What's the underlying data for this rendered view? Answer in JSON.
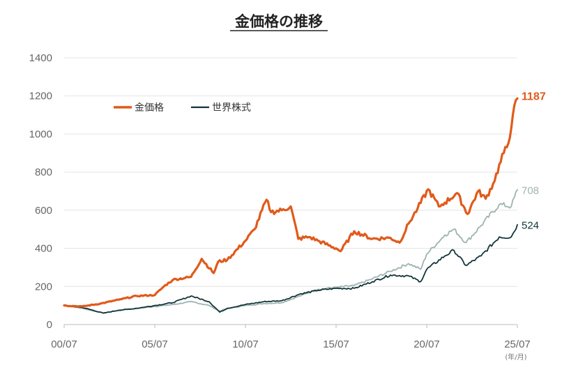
{
  "chart_data": {
    "type": "line",
    "title": "金価格の推移",
    "x_unit_note": "(年/月)",
    "xlabel": "",
    "ylabel": "",
    "x_ticks": [
      "00/07",
      "05/07",
      "10/07",
      "15/07",
      "20/07",
      "25/07"
    ],
    "y_ticks": [
      0,
      200,
      400,
      600,
      800,
      1000,
      1200,
      1400
    ],
    "ylim": [
      0,
      1400
    ],
    "xlim": [
      "2000-07",
      "2025-07"
    ],
    "grid": "horizontal",
    "legend_position": "top-left",
    "series": [
      {
        "name": "金価格",
        "color": "#e05a1a",
        "end_label": "1187",
        "points": [
          [
            "2000-07",
            100
          ],
          [
            "2001-07",
            95
          ],
          [
            "2002-07",
            110
          ],
          [
            "2003-07",
            130
          ],
          [
            "2004-07",
            150
          ],
          [
            "2005-07",
            155
          ],
          [
            "2006-01",
            200
          ],
          [
            "2006-07",
            235
          ],
          [
            "2007-07",
            250
          ],
          [
            "2008-02",
            345
          ],
          [
            "2008-10",
            270
          ],
          [
            "2009-01",
            330
          ],
          [
            "2009-07",
            340
          ],
          [
            "2010-07",
            440
          ],
          [
            "2011-01",
            500
          ],
          [
            "2011-09",
            655
          ],
          [
            "2011-12",
            590
          ],
          [
            "2012-07",
            600
          ],
          [
            "2013-01",
            620
          ],
          [
            "2013-06",
            450
          ],
          [
            "2014-01",
            460
          ],
          [
            "2014-07",
            440
          ],
          [
            "2015-07",
            400
          ],
          [
            "2015-10",
            385
          ],
          [
            "2016-07",
            490
          ],
          [
            "2017-07",
            450
          ],
          [
            "2018-07",
            455
          ],
          [
            "2019-01",
            430
          ],
          [
            "2019-07",
            530
          ],
          [
            "2020-01",
            610
          ],
          [
            "2020-08",
            710
          ],
          [
            "2021-03",
            620
          ],
          [
            "2021-07",
            640
          ],
          [
            "2022-03",
            690
          ],
          [
            "2022-10",
            580
          ],
          [
            "2023-05",
            700
          ],
          [
            "2023-10",
            660
          ],
          [
            "2024-03",
            740
          ],
          [
            "2024-10",
            900
          ],
          [
            "2025-01",
            950
          ],
          [
            "2025-04",
            1100
          ],
          [
            "2025-07",
            1187
          ]
        ]
      },
      {
        "name": "",
        "color": "#9db3b0",
        "end_label": "708",
        "points": [
          [
            "2000-07",
            100
          ],
          [
            "2001-07",
            85
          ],
          [
            "2002-09",
            60
          ],
          [
            "2003-07",
            75
          ],
          [
            "2004-07",
            85
          ],
          [
            "2005-07",
            95
          ],
          [
            "2006-07",
            105
          ],
          [
            "2007-07",
            120
          ],
          [
            "2008-07",
            100
          ],
          [
            "2009-02",
            70
          ],
          [
            "2009-07",
            85
          ],
          [
            "2010-07",
            100
          ],
          [
            "2011-07",
            110
          ],
          [
            "2012-07",
            115
          ],
          [
            "2013-07",
            150
          ],
          [
            "2014-07",
            185
          ],
          [
            "2015-07",
            195
          ],
          [
            "2016-07",
            205
          ],
          [
            "2017-07",
            240
          ],
          [
            "2018-07",
            280
          ],
          [
            "2019-07",
            320
          ],
          [
            "2020-03",
            290
          ],
          [
            "2020-07",
            370
          ],
          [
            "2021-07",
            470
          ],
          [
            "2022-01",
            500
          ],
          [
            "2022-09",
            430
          ],
          [
            "2023-07",
            520
          ],
          [
            "2024-07",
            630
          ],
          [
            "2025-03",
            620
          ],
          [
            "2025-07",
            708
          ]
        ]
      },
      {
        "name": "世界株式",
        "color": "#11353a",
        "end_label": "524",
        "points": [
          [
            "2000-07",
            100
          ],
          [
            "2001-07",
            90
          ],
          [
            "2002-09",
            60
          ],
          [
            "2003-07",
            75
          ],
          [
            "2004-07",
            85
          ],
          [
            "2005-07",
            100
          ],
          [
            "2006-07",
            115
          ],
          [
            "2007-07",
            150
          ],
          [
            "2008-07",
            120
          ],
          [
            "2009-02",
            65
          ],
          [
            "2009-07",
            85
          ],
          [
            "2010-07",
            105
          ],
          [
            "2011-07",
            120
          ],
          [
            "2012-07",
            125
          ],
          [
            "2013-07",
            160
          ],
          [
            "2014-07",
            180
          ],
          [
            "2015-07",
            190
          ],
          [
            "2016-07",
            190
          ],
          [
            "2017-07",
            225
          ],
          [
            "2018-07",
            260
          ],
          [
            "2019-07",
            255
          ],
          [
            "2020-03",
            225
          ],
          [
            "2020-07",
            290
          ],
          [
            "2021-07",
            360
          ],
          [
            "2022-01",
            390
          ],
          [
            "2022-09",
            310
          ],
          [
            "2023-07",
            360
          ],
          [
            "2024-07",
            460
          ],
          [
            "2025-03",
            460
          ],
          [
            "2025-07",
            524
          ]
        ]
      }
    ]
  }
}
